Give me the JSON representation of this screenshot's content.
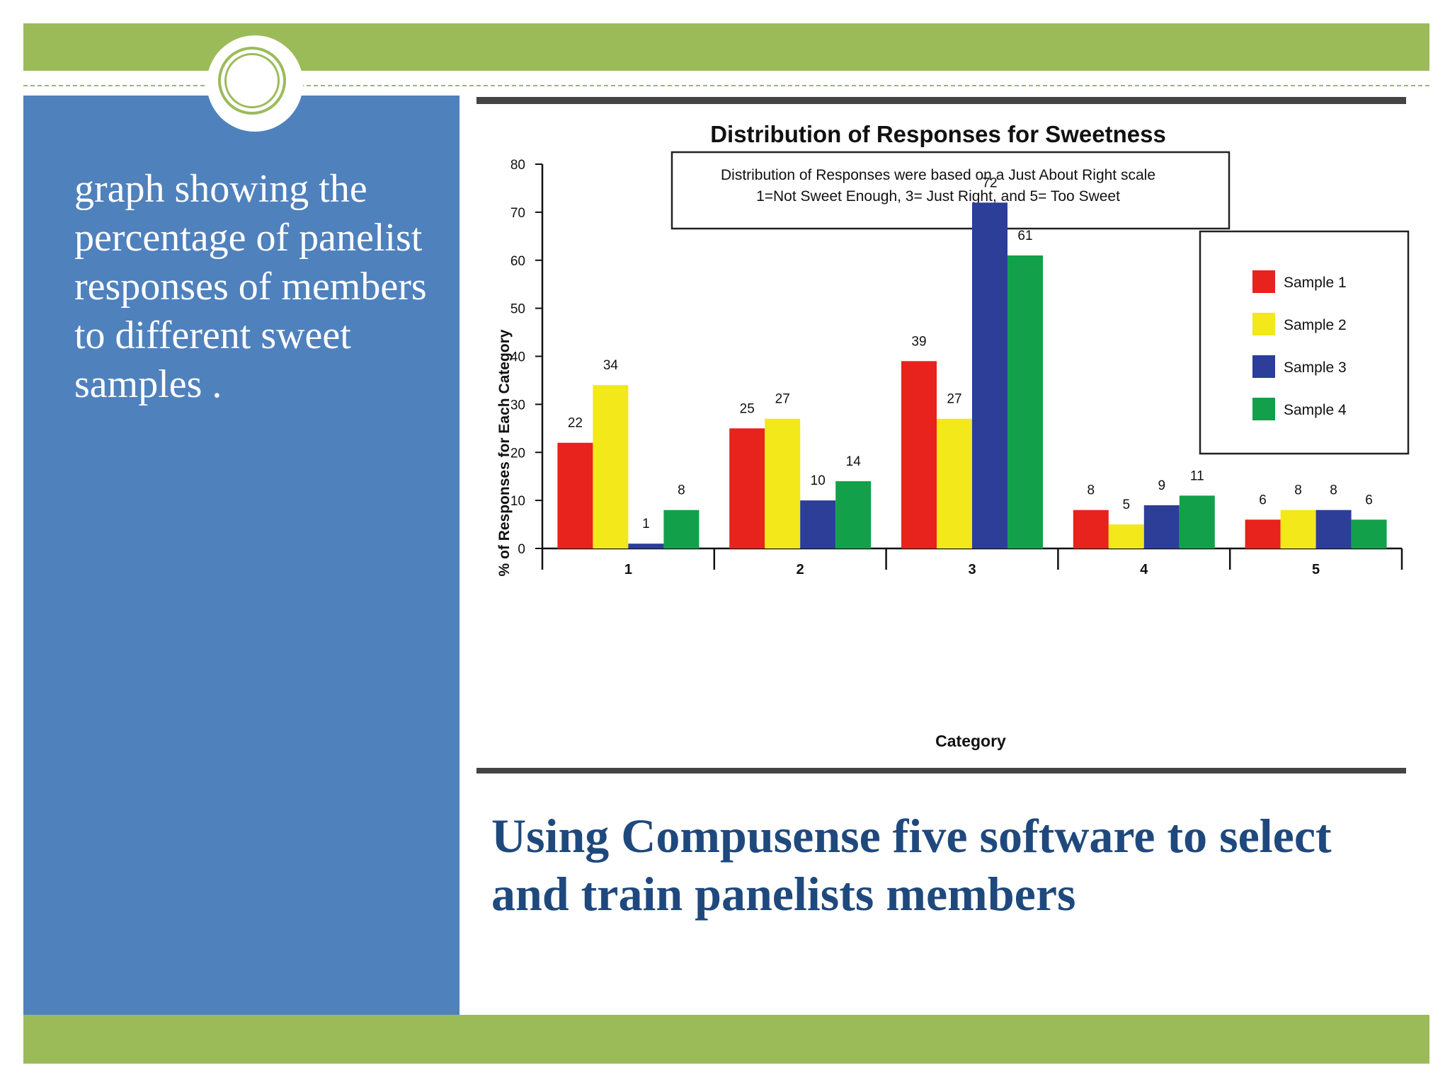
{
  "slide": {
    "side_text": "graph showing the percentage of panelist  responses of members to different sweet samples .",
    "headline": "Using Compusense five software to select and train panelists members",
    "colors": {
      "band_green": "#9bbb59",
      "panel_blue": "#4f81bd",
      "headline_navy": "#1f497d"
    }
  },
  "chart_data": {
    "type": "bar",
    "title": "Distribution of Responses for Sweetness",
    "note_lines": [
      "Distribution of Responses were based on a Just About Right scale",
      "1=Not Sweet Enough, 3= Just Right, and 5= Too Sweet"
    ],
    "xlabel": "Category",
    "ylabel": "% of Responses for Each Category",
    "categories": [
      "1",
      "2",
      "3",
      "4",
      "5"
    ],
    "ylim": [
      0,
      80
    ],
    "yticks": [
      0,
      10,
      20,
      30,
      40,
      50,
      60,
      70,
      80
    ],
    "series": [
      {
        "name": "Sample 1",
        "color": "#e8221d",
        "values": [
          22,
          25,
          39,
          8,
          6
        ]
      },
      {
        "name": "Sample 2",
        "color": "#f2e81a",
        "values": [
          34,
          27,
          27,
          5,
          8
        ]
      },
      {
        "name": "Sample 3",
        "color": "#2c3e98",
        "values": [
          1,
          10,
          72,
          9,
          8
        ]
      },
      {
        "name": "Sample 4",
        "color": "#12a14a",
        "values": [
          8,
          14,
          61,
          11,
          6
        ]
      }
    ],
    "grid": false,
    "legend_position": "right"
  }
}
